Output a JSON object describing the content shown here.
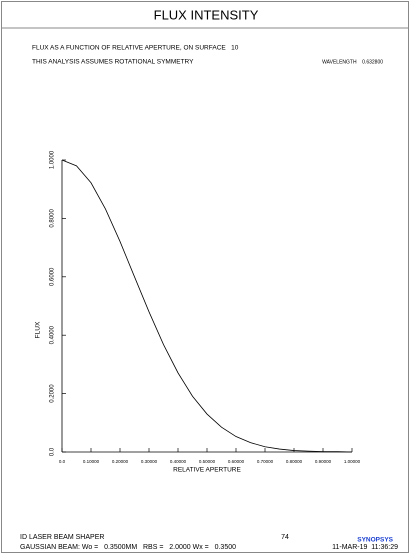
{
  "chart_data": {
    "type": "line",
    "title": "FLUX INTENSITY",
    "subtitle": "FLUX AS A FUNCTION OF RELATIVE APERTURE, ON SURFACE   10",
    "note": "THIS ANALYSIS ASSUMES ROTATIONAL SYMMETRY",
    "wavelength": "WAVELENGTH    0.632800",
    "xlabel": "RELATIVE APERTURE",
    "ylabel": "FLUX",
    "x": [
      0,
      0.05,
      0.1,
      0.15,
      0.2,
      0.25,
      0.3,
      0.35,
      0.4,
      0.45,
      0.5,
      0.55,
      0.6,
      0.65,
      0.7,
      0.75,
      0.8,
      0.85,
      0.9,
      0.95,
      1.0
    ],
    "series": [
      {
        "color": "#000000",
        "values": [
          1.0,
          0.98,
          0.922,
          0.832,
          0.721,
          0.6,
          0.48,
          0.368,
          0.271,
          0.191,
          0.13,
          0.085,
          0.053,
          0.032,
          0.018,
          0.01,
          0.005,
          0.003,
          0.001,
          0.001,
          0.0
        ]
      }
    ],
    "xlim": [
      0,
      1
    ],
    "ylim": [
      0,
      1
    ],
    "xticks": [
      {
        "value": 0,
        "label": "0.0"
      },
      {
        "value": 0.1,
        "label": "0.10000"
      },
      {
        "value": 0.2,
        "label": "0.20000"
      },
      {
        "value": 0.3,
        "label": "0.30000"
      },
      {
        "value": 0.4,
        "label": "0.40000"
      },
      {
        "value": 0.5,
        "label": "0.50000"
      },
      {
        "value": 0.6,
        "label": "0.60000"
      },
      {
        "value": 0.7,
        "label": "0.70000"
      },
      {
        "value": 0.8,
        "label": "0.80000"
      },
      {
        "value": 0.9,
        "label": "0.90000"
      },
      {
        "value": 1,
        "label": "1.00000"
      }
    ],
    "yticks": [
      {
        "value": 0,
        "label": "0.0"
      },
      {
        "value": 0.2,
        "label": "0.2000"
      },
      {
        "value": 0.4,
        "label": "0.4000"
      },
      {
        "value": 0.6,
        "label": "0.6000"
      },
      {
        "value": 0.8,
        "label": "0.8000"
      },
      {
        "value": 1,
        "label": "1.0000"
      }
    ],
    "grid": false
  },
  "footer": {
    "left1": "ID LASER BEAM SHAPER",
    "page": "74",
    "brand": "SYNOPSYS",
    "left2": "GAUSSIAN BEAM: Wo =   0.3500MM   RBS =   2.0000 Wx =   0.3500",
    "date": "11-MAR-19  11:36:29"
  }
}
